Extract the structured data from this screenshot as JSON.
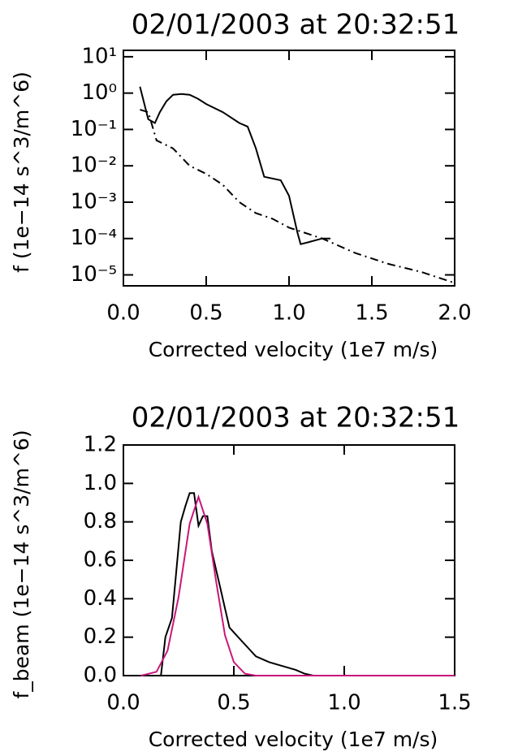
{
  "chart_data": [
    {
      "type": "line",
      "title": "02/01/2003 at 20:32:51",
      "x_label": "Corrected velocity (1e7 m/s)",
      "y_label": "f (1e−14 s^3/m^6)",
      "log_y": true,
      "xlim": [
        0,
        2
      ],
      "ylim": [
        5e-06,
        15
      ],
      "xticks": [
        {
          "value": 0,
          "label": "0.0"
        },
        {
          "value": 0.5,
          "label": "0.5"
        },
        {
          "value": 1,
          "label": "1.0"
        },
        {
          "value": 1.5,
          "label": "1.5"
        },
        {
          "value": 2,
          "label": "2.0"
        }
      ],
      "yticks": [
        {
          "value": 10,
          "label": "10¹"
        },
        {
          "value": 1,
          "label": "10⁰"
        },
        {
          "value": 0.1,
          "label": "10⁻¹"
        },
        {
          "value": 0.01,
          "label": "10⁻²"
        },
        {
          "value": 0.001,
          "label": "10⁻³"
        },
        {
          "value": 0.0001,
          "label": "10⁻⁴"
        },
        {
          "value": 1e-05,
          "label": "10⁻⁵"
        }
      ],
      "series": [
        {
          "color": "#000000",
          "linestyle": "solid",
          "x": [
            0.1,
            0.15,
            0.19,
            0.22,
            0.26,
            0.3,
            0.35,
            0.4,
            0.45,
            0.5,
            0.6,
            0.7,
            0.75,
            0.8,
            0.85,
            0.95,
            1.0,
            1.05,
            1.07,
            1.12,
            1.2,
            1.25
          ],
          "values": [
            1.5,
            0.19,
            0.15,
            0.3,
            0.6,
            0.9,
            0.95,
            0.9,
            0.7,
            0.5,
            0.3,
            0.15,
            0.12,
            0.03,
            0.005,
            0.004,
            0.0015,
            0.00015,
            7e-05,
            8e-05,
            0.0001,
            0.0001
          ]
        },
        {
          "color": "#000000",
          "linestyle": "dashdot",
          "x": [
            0.1,
            0.15,
            0.2,
            0.3,
            0.4,
            0.5,
            0.6,
            0.7,
            0.8,
            0.9,
            1.0,
            1.2,
            1.4,
            1.6,
            1.8,
            2.0
          ],
          "values": [
            0.35,
            0.3,
            0.05,
            0.03,
            0.01,
            0.006,
            0.003,
            0.001,
            0.0005,
            0.00035,
            0.0002,
            0.0001,
            4e-05,
            2e-05,
            1.2e-05,
            6e-06
          ]
        }
      ]
    },
    {
      "type": "line",
      "title": "02/01/2003 at 20:32:51",
      "x_label": "Corrected velocity (1e7 m/s)",
      "y_label": "f_beam (1e−14 s^3/m^6)",
      "log_y": false,
      "xlim": [
        0,
        1.5
      ],
      "ylim": [
        0,
        1.2
      ],
      "xticks": [
        {
          "value": 0,
          "label": "0.0"
        },
        {
          "value": 0.5,
          "label": "0.5"
        },
        {
          "value": 1,
          "label": "1.0"
        },
        {
          "value": 1.5,
          "label": "1.5"
        }
      ],
      "yticks": [
        {
          "value": 0,
          "label": "0.0"
        },
        {
          "value": 0.2,
          "label": "0.2"
        },
        {
          "value": 0.4,
          "label": "0.4"
        },
        {
          "value": 0.6,
          "label": "0.6"
        },
        {
          "value": 0.8,
          "label": "0.8"
        },
        {
          "value": 1,
          "label": "1.0"
        },
        {
          "value": 1.2,
          "label": "1.2"
        }
      ],
      "series": [
        {
          "color": "#000000",
          "linestyle": "solid",
          "x": [
            0.17,
            0.19,
            0.22,
            0.24,
            0.26,
            0.28,
            0.3,
            0.32,
            0.34,
            0.36,
            0.38,
            0.4,
            0.42,
            0.44,
            0.46,
            0.48,
            0.52,
            0.56,
            0.6,
            0.66,
            0.72,
            0.78,
            0.82,
            0.86,
            1.05
          ],
          "values": [
            0,
            0.2,
            0.3,
            0.55,
            0.8,
            0.88,
            0.95,
            0.95,
            0.78,
            0.83,
            0.83,
            0.65,
            0.55,
            0.45,
            0.35,
            0.25,
            0.2,
            0.15,
            0.1,
            0.07,
            0.05,
            0.03,
            0.01,
            0,
            0
          ]
        },
        {
          "color": "#c8177a",
          "linestyle": "solid",
          "x": [
            0.08,
            0.15,
            0.2,
            0.25,
            0.3,
            0.34,
            0.38,
            0.42,
            0.46,
            0.5,
            0.55,
            0.6,
            1.5
          ],
          "values": [
            0,
            0.02,
            0.13,
            0.41,
            0.79,
            0.93,
            0.79,
            0.49,
            0.21,
            0.07,
            0.01,
            0,
            0
          ]
        }
      ]
    }
  ]
}
